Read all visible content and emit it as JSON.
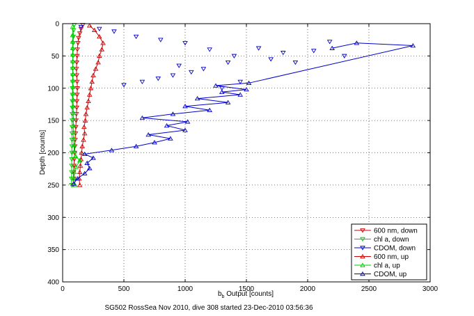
{
  "chart_data": {
    "type": "scatter",
    "title": "",
    "xlabel_main": "b",
    "xlabel_sub": "b",
    "xlabel_rest": " Output [counts]",
    "ylabel": "Depth [counts]",
    "caption": "SG502 RossSea Nov 2010, dive 308 started 23-Dec-2010 03:56:36",
    "xlim": [
      0,
      3000
    ],
    "ylim": [
      0,
      400
    ],
    "y_reversed": true,
    "grid": true,
    "legend_position": "bottom-right",
    "xticks": [
      0,
      500,
      1000,
      1500,
      2000,
      2500,
      3000
    ],
    "yticks": [
      0,
      50,
      100,
      150,
      200,
      250,
      300,
      350,
      400
    ],
    "series": [
      {
        "name": "600 nm, down",
        "color": "#cc0000",
        "marker": "triangle-down",
        "line": true,
        "points": [
          [
            165,
            2
          ],
          [
            150,
            8
          ],
          [
            140,
            15
          ],
          [
            130,
            22
          ],
          [
            125,
            30
          ],
          [
            120,
            40
          ],
          [
            118,
            50
          ],
          [
            115,
            60
          ],
          [
            112,
            70
          ],
          [
            115,
            80
          ],
          [
            118,
            90
          ],
          [
            120,
            100
          ],
          [
            118,
            110
          ],
          [
            116,
            120
          ],
          [
            115,
            130
          ],
          [
            112,
            140
          ],
          [
            110,
            150
          ],
          [
            108,
            160
          ],
          [
            105,
            170
          ],
          [
            102,
            180
          ],
          [
            100,
            190
          ],
          [
            98,
            200
          ],
          [
            95,
            210
          ],
          [
            92,
            220
          ],
          [
            90,
            230
          ],
          [
            88,
            240
          ],
          [
            85,
            250
          ]
        ]
      },
      {
        "name": "chl a, down",
        "color": "#00cc00",
        "marker": "triangle-down",
        "line": true,
        "points": [
          [
            95,
            2
          ],
          [
            90,
            10
          ],
          [
            88,
            20
          ],
          [
            86,
            30
          ],
          [
            85,
            40
          ],
          [
            84,
            50
          ],
          [
            83,
            60
          ],
          [
            82,
            70
          ],
          [
            82,
            80
          ],
          [
            81,
            90
          ],
          [
            80,
            100
          ],
          [
            80,
            110
          ],
          [
            79,
            120
          ],
          [
            79,
            130
          ],
          [
            78,
            140
          ],
          [
            78,
            150
          ],
          [
            77,
            160
          ],
          [
            77,
            170
          ],
          [
            76,
            180
          ],
          [
            76,
            190
          ],
          [
            75,
            200
          ],
          [
            75,
            210
          ],
          [
            74,
            220
          ],
          [
            74,
            230
          ],
          [
            73,
            240
          ],
          [
            73,
            250
          ]
        ]
      },
      {
        "name": "CDOM, down",
        "color": "#0000cc",
        "marker": "triangle-down",
        "line": false,
        "points": [
          [
            150,
            5
          ],
          [
            300,
            8
          ],
          [
            420,
            12
          ],
          [
            600,
            20
          ],
          [
            800,
            25
          ],
          [
            1000,
            30
          ],
          [
            1200,
            40
          ],
          [
            1400,
            50
          ],
          [
            1600,
            38
          ],
          [
            1800,
            45
          ],
          [
            2050,
            42
          ],
          [
            2180,
            28
          ],
          [
            1350,
            60
          ],
          [
            1150,
            70
          ],
          [
            1050,
            75
          ],
          [
            900,
            80
          ],
          [
            780,
            85
          ],
          [
            650,
            90
          ],
          [
            500,
            95
          ],
          [
            2300,
            50
          ],
          [
            1900,
            60
          ],
          [
            1450,
            90
          ],
          [
            1300,
            100
          ],
          [
            950,
            65
          ],
          [
            1700,
            55
          ]
        ]
      },
      {
        "name": "600 nm, up",
        "color": "#cc0000",
        "marker": "triangle-up",
        "line": true,
        "points": [
          [
            140,
            250
          ],
          [
            135,
            240
          ],
          [
            140,
            230
          ],
          [
            145,
            220
          ],
          [
            150,
            210
          ],
          [
            155,
            200
          ],
          [
            160,
            190
          ],
          [
            170,
            180
          ],
          [
            180,
            170
          ],
          [
            175,
            160
          ],
          [
            185,
            150
          ],
          [
            190,
            140
          ],
          [
            200,
            130
          ],
          [
            210,
            120
          ],
          [
            220,
            110
          ],
          [
            230,
            100
          ],
          [
            240,
            90
          ],
          [
            250,
            80
          ],
          [
            270,
            70
          ],
          [
            290,
            60
          ],
          [
            300,
            50
          ],
          [
            320,
            40
          ],
          [
            330,
            30
          ],
          [
            300,
            20
          ],
          [
            260,
            10
          ],
          [
            220,
            3
          ]
        ]
      },
      {
        "name": "chl a, up",
        "color": "#00cc00",
        "marker": "triangle-up",
        "line": true,
        "points": [
          [
            100,
            250
          ],
          [
            98,
            240
          ],
          [
            95,
            230
          ],
          [
            110,
            222
          ],
          [
            140,
            212
          ],
          [
            105,
            205
          ],
          [
            95,
            198
          ],
          [
            92,
            188
          ],
          [
            90,
            178
          ],
          [
            90,
            168
          ],
          [
            88,
            158
          ],
          [
            88,
            148
          ],
          [
            87,
            138
          ],
          [
            86,
            128
          ],
          [
            86,
            118
          ],
          [
            85,
            108
          ],
          [
            85,
            98
          ],
          [
            84,
            88
          ],
          [
            84,
            78
          ],
          [
            83,
            68
          ],
          [
            83,
            58
          ],
          [
            82,
            48
          ],
          [
            82,
            38
          ],
          [
            81,
            28
          ],
          [
            81,
            18
          ],
          [
            81,
            5
          ]
        ]
      },
      {
        "name": "CDOM, up",
        "color": "#0000cc",
        "marker": "triangle-up",
        "line": true,
        "points": [
          [
            90,
            248
          ],
          [
            120,
            240
          ],
          [
            180,
            232
          ],
          [
            220,
            224
          ],
          [
            200,
            216
          ],
          [
            250,
            208
          ],
          [
            180,
            202
          ],
          [
            400,
            196
          ],
          [
            600,
            190
          ],
          [
            750,
            184
          ],
          [
            880,
            178
          ],
          [
            700,
            172
          ],
          [
            1000,
            165
          ],
          [
            850,
            158
          ],
          [
            1020,
            152
          ],
          [
            650,
            146
          ],
          [
            900,
            140
          ],
          [
            1200,
            134
          ],
          [
            1000,
            128
          ],
          [
            1350,
            122
          ],
          [
            1100,
            116
          ],
          [
            1450,
            110
          ],
          [
            1300,
            106
          ],
          [
            1500,
            102
          ],
          [
            1250,
            96
          ],
          [
            1520,
            92
          ],
          [
            2860,
            34
          ],
          [
            2400,
            30
          ],
          [
            2200,
            38
          ]
        ]
      }
    ]
  }
}
